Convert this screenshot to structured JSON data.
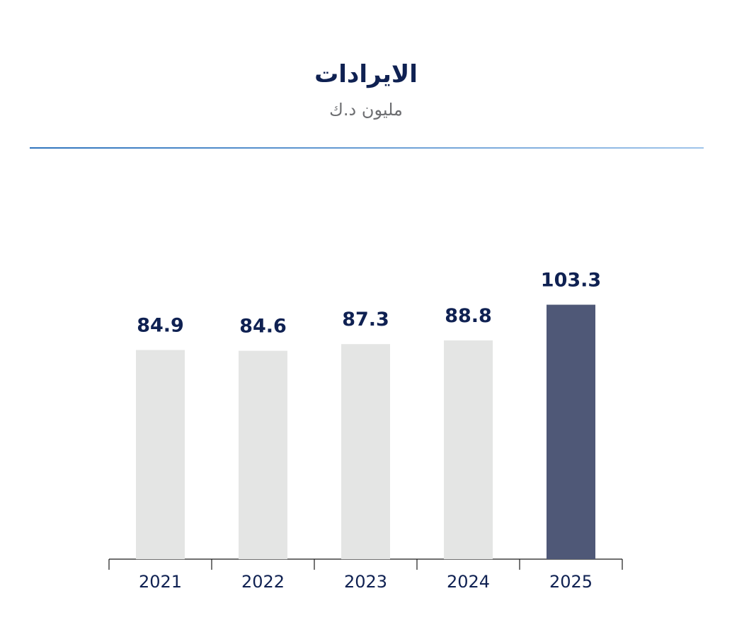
{
  "header": {
    "title": "الايرادات",
    "subtitle": "مليون د.ك"
  },
  "colors": {
    "title": "#0f2152",
    "subtitle": "#6d6e71",
    "bar_default": "#e4e5e4",
    "bar_highlight": "#4f5877",
    "value_label": "#0f2152",
    "axis": "#1a1a1a",
    "divider": "#2f74bd"
  },
  "chart_data": {
    "type": "bar",
    "title": "الايرادات",
    "subtitle": "مليون د.ك",
    "categories": [
      "2021",
      "2022",
      "2023",
      "2024",
      "2025"
    ],
    "values": [
      84.9,
      84.6,
      87.3,
      88.8,
      103.3
    ],
    "value_labels": [
      "84.9",
      "84.6",
      "87.3",
      "88.8",
      "103.3"
    ],
    "highlight_index": 4,
    "xlabel": "",
    "ylabel": "",
    "grid": false,
    "legend": "none"
  }
}
